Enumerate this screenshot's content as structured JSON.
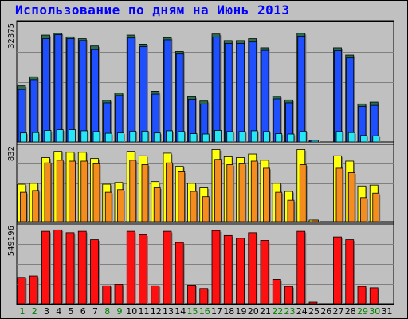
{
  "chart_data": {
    "type": "bar",
    "title": "Использование по дням на Июнь 2013",
    "categories": [
      "1",
      "2",
      "3",
      "4",
      "5",
      "6",
      "7",
      "8",
      "9",
      "10",
      "11",
      "12",
      "13",
      "14",
      "15",
      "16",
      "17",
      "18",
      "19",
      "20",
      "21",
      "22",
      "23",
      "24",
      "25",
      "26",
      "27",
      "28",
      "29",
      "30",
      "31"
    ],
    "weekend_days": [
      "1",
      "2",
      "8",
      "9",
      "15",
      "16",
      "22",
      "23",
      "29",
      "30"
    ],
    "panels": [
      {
        "ylabel": "32375",
        "ymax": 32375,
        "series": [
          {
            "color": "#2d6e4f",
            "values": [
              15500,
              18000,
              29500,
              30000,
              29000,
              28500,
              26500,
              11500,
              13500,
              29500,
              27000,
              14000,
              28800,
              25000,
              12500,
              11300,
              29800,
              28000,
              28000,
              28500,
              26000,
              12600,
              11600,
              30000,
              0,
              null,
              26000,
              24000,
              10500,
              11000,
              null
            ]
          },
          {
            "color": "#1e50ff",
            "values": [
              14500,
              17200,
              28500,
              29600,
              28500,
              28000,
              25500,
              10800,
              12800,
              28700,
              26300,
              13200,
              28200,
              24300,
              11800,
              10500,
              29000,
              27200,
              27200,
              27600,
              25300,
              11900,
              10800,
              29200,
              0,
              null,
              25200,
              23200,
              9800,
              10100,
              null
            ]
          },
          {
            "color": "#27e6f5",
            "values": [
              2500,
              2600,
              3200,
              3400,
              3400,
              3100,
              2900,
              2400,
              2500,
              3000,
              3000,
              2500,
              3100,
              2900,
              2300,
              2200,
              3200,
              2900,
              2900,
              3100,
              2900,
              2300,
              2200,
              3000,
              0,
              null,
              2900,
              2600,
              1800,
              1700,
              null
            ]
          }
        ]
      },
      {
        "ylabel": "832",
        "ymax": 832,
        "series": [
          {
            "color": "#ffff10",
            "values": [
              420,
              430,
              720,
              790,
              780,
              780,
              710,
              420,
              440,
              790,
              740,
              450,
              770,
              620,
              430,
              380,
              810,
              730,
              720,
              760,
              690,
              430,
              340,
              810,
              0,
              null,
              740,
              680,
              400,
              410,
              null
            ]
          },
          {
            "color": "#f58c1e",
            "values": [
              330,
              350,
              660,
              690,
              680,
              680,
              650,
              330,
              360,
              690,
              640,
              380,
              660,
              560,
              340,
              280,
              700,
              640,
              650,
              680,
              600,
              330,
              240,
              640,
              0,
              null,
              600,
              550,
              270,
              320,
              null
            ]
          }
        ]
      },
      {
        "ylabel": "549196",
        "ymax": 549196,
        "series": [
          {
            "color": "#ff1010",
            "values": [
              190000,
              200000,
              520000,
              530000,
              510000,
              520000,
              460000,
              130000,
              140000,
              520000,
              495000,
              130000,
              520000,
              440000,
              135000,
              110000,
              525000,
              490000,
              470000,
              510000,
              455000,
              175000,
              125000,
              520000,
              0,
              null,
              480000,
              460000,
              125000,
              115000,
              null
            ]
          }
        ]
      }
    ],
    "colors": {
      "weekday_label": "#000000",
      "weekend_label": "#008000",
      "title": "#0000ff",
      "background": "#c0c0c0"
    }
  }
}
